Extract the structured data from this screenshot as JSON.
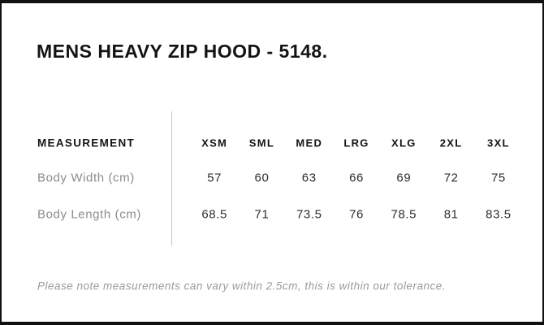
{
  "header": {
    "title": "MENS HEAVY ZIP HOOD - 5148."
  },
  "chart_data": {
    "type": "table",
    "title": "MENS HEAVY ZIP HOOD - 5148.",
    "columns": [
      "MEASUREMENT",
      "XSM",
      "SML",
      "MED",
      "LRG",
      "XLG",
      "2XL",
      "3XL"
    ],
    "rows": [
      [
        "Body Width (cm)",
        57,
        60,
        63,
        66,
        69,
        72,
        75
      ],
      [
        "Body Length (cm)",
        68.5,
        71,
        73.5,
        76,
        78.5,
        81,
        83.5
      ]
    ],
    "footnote": "Please note measurements can vary within 2.5cm, this is within our tolerance.",
    "layout": {
      "grid": "off",
      "column_divider": "vertical line between label column and size columns"
    }
  },
  "colors": {
    "frame": "#111111",
    "background": "#ffffff",
    "title_text": "#131313",
    "header_text": "#141414",
    "value_text": "#2e2e2e",
    "label_text": "#8c8c8c",
    "note_text": "#9a9a9a",
    "divider": "#c9c9c9"
  }
}
